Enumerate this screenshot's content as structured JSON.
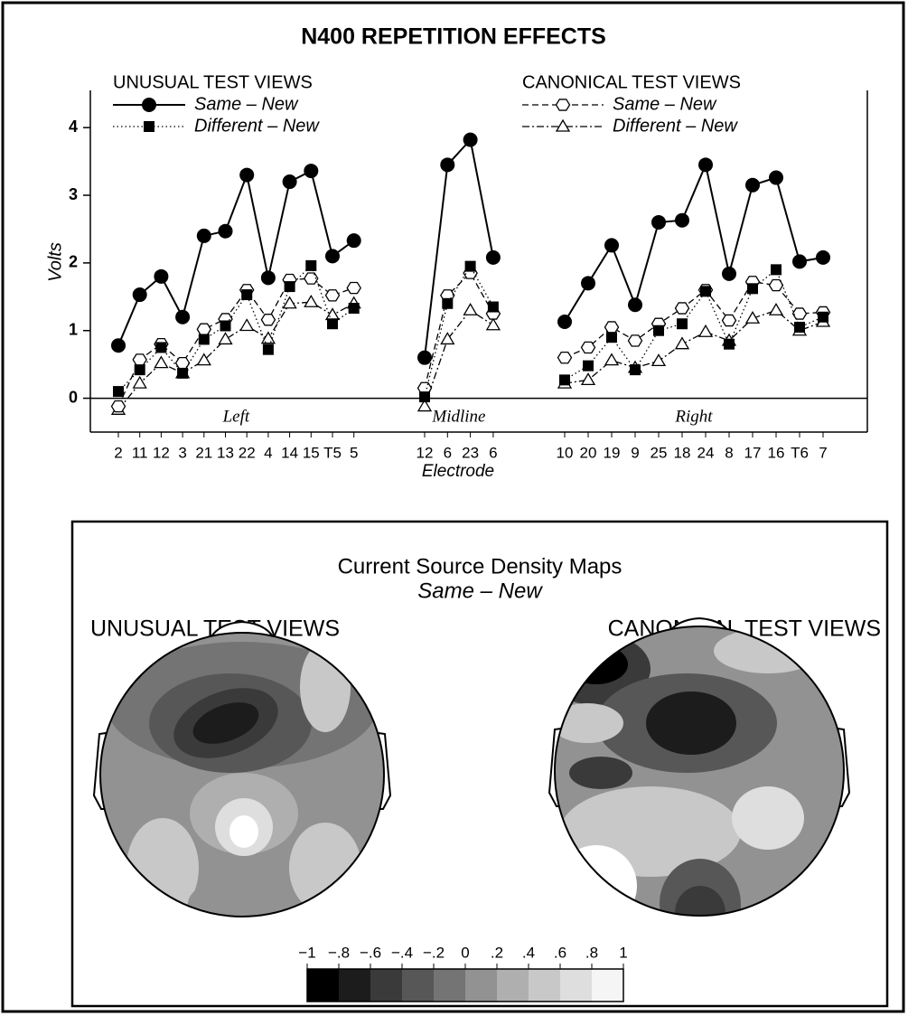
{
  "title": "N400 REPETITION EFFECTS",
  "chart_data": {
    "type": "line",
    "ylabel": "Volts",
    "xlabel": "Electrode",
    "ylim": [
      -0.5,
      4.55
    ],
    "yticks": [
      0,
      1,
      2,
      3,
      4
    ],
    "groups": [
      "Left",
      "Midline",
      "Right"
    ],
    "categories": [
      [
        "2",
        "11",
        "12",
        "3",
        "21",
        "13",
        "22",
        "4",
        "14",
        "15",
        "T5",
        "5"
      ],
      [
        "12",
        "6",
        "23",
        "6"
      ],
      [
        "10",
        "20",
        "19",
        "9",
        "25",
        "18",
        "24",
        "8",
        "17",
        "16",
        "T6",
        "7"
      ]
    ],
    "legend_titles": [
      "UNUSUAL TEST VIEWS",
      "CANONICAL TEST VIEWS"
    ],
    "series": [
      {
        "name": "Same – New",
        "color": "#000000",
        "marker": "circle",
        "dash": "solid",
        "values": [
          [
            0.78,
            1.53,
            1.8,
            1.2,
            2.4,
            2.47,
            3.3,
            1.78,
            3.2,
            3.36,
            2.1,
            2.33
          ],
          [
            0.6,
            3.45,
            3.82,
            2.08
          ],
          [
            1.13,
            1.7,
            2.26,
            1.38,
            2.6,
            2.63,
            3.45,
            1.84,
            3.15,
            3.26,
            2.02,
            2.08
          ]
        ]
      },
      {
        "name": "Different – New",
        "color": "#000000",
        "marker": "square",
        "dash": "dotted",
        "values": [
          [
            0.1,
            0.42,
            0.75,
            0.37,
            0.87,
            1.07,
            1.53,
            0.72,
            1.65,
            1.96,
            1.1,
            1.33
          ],
          [
            0.02,
            1.4,
            1.95,
            1.35
          ],
          [
            0.27,
            0.48,
            0.9,
            0.42,
            1.0,
            1.1,
            1.58,
            0.8,
            1.62,
            1.9,
            1.05,
            1.2
          ]
        ]
      },
      {
        "name": "Same – New",
        "color": "#000000",
        "marker": "hexagon",
        "dash": "dashed",
        "values": [
          [
            -0.12,
            0.57,
            0.8,
            0.52,
            1.02,
            1.17,
            1.6,
            1.16,
            1.75,
            1.77,
            1.52,
            1.63
          ],
          [
            0.15,
            1.52,
            1.85,
            1.25
          ],
          [
            0.6,
            0.75,
            1.05,
            0.85,
            1.1,
            1.33,
            1.6,
            1.15,
            1.72,
            1.67,
            1.25,
            1.27
          ]
        ]
      },
      {
        "name": "Different – New",
        "color": "#000000",
        "marker": "triangle",
        "dash": "dashdot",
        "values": [
          [
            -0.17,
            0.22,
            0.52,
            0.37,
            0.56,
            0.87,
            1.07,
            0.88,
            1.4,
            1.42,
            1.23,
            1.4
          ],
          [
            -0.12,
            0.87,
            1.3,
            1.08
          ],
          [
            0.22,
            0.27,
            0.56,
            0.45,
            0.55,
            0.8,
            0.98,
            0.85,
            1.18,
            1.3,
            1.0,
            1.13
          ]
        ]
      }
    ]
  },
  "maps": {
    "title": "Current Source Density Maps",
    "subtitle": "Same – New",
    "panels": [
      "UNUSUAL TEST VIEWS",
      "CANONICAL TEST VIEWS"
    ],
    "colorbar": {
      "colors": [
        "#000000",
        "#1c1c1c",
        "#3a3a3a",
        "#575757",
        "#747474",
        "#929292",
        "#afafaf",
        "#c8c8c8",
        "#dedede",
        "#f5f5f5"
      ],
      "ticks": [
        {
          "value": -1,
          "label": "−1"
        },
        {
          "value": -0.8,
          "label": "−.8"
        },
        {
          "value": -0.6,
          "label": "−.6"
        },
        {
          "value": -0.4,
          "label": "−.4"
        },
        {
          "value": -0.2,
          "label": "−.2"
        },
        0,
        {
          "value": 0.2,
          "label": ".2"
        },
        {
          "value": 0.4,
          "label": ".4"
        },
        {
          "value": 0.6,
          "label": ".6"
        },
        {
          "value": 0.8,
          "label": ".8"
        },
        1
      ]
    }
  }
}
